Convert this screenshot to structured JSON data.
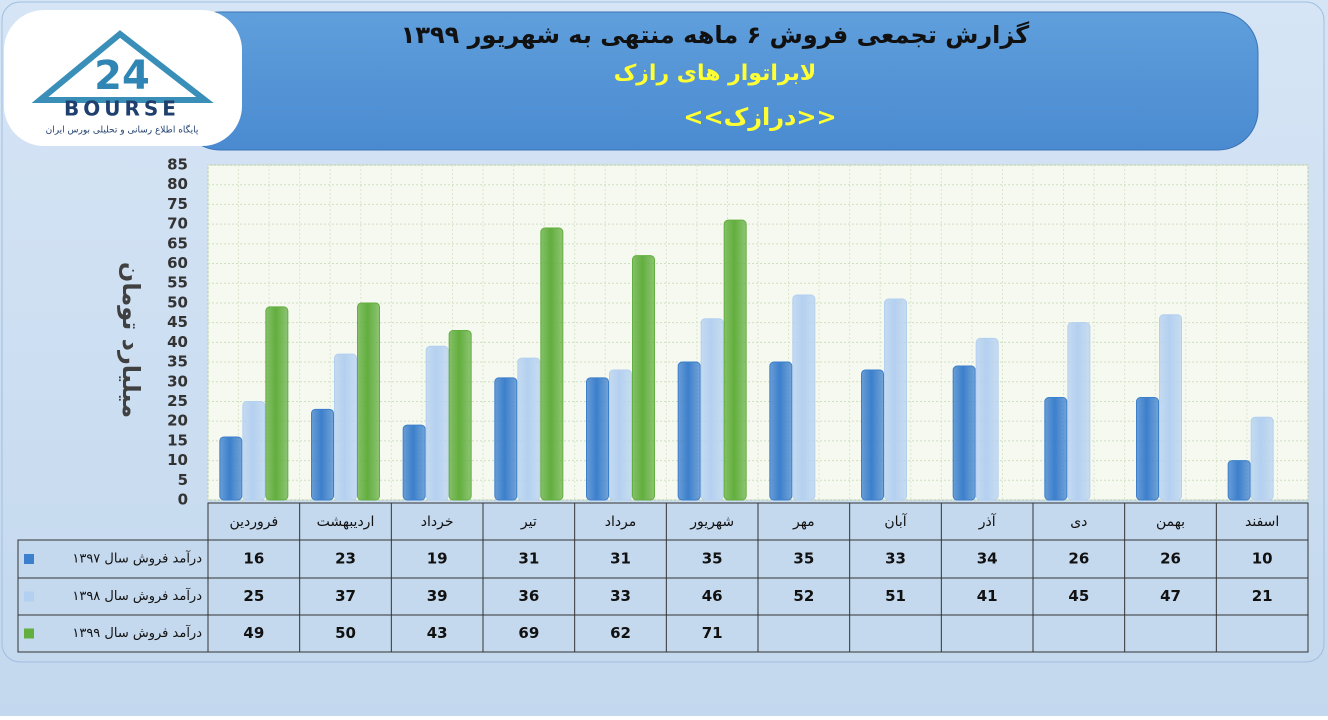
{
  "logo": {
    "mark": "24",
    "name": "BOURSE",
    "tagline": "پایگاه اطلاع رسانی و تحلیلی بورس ایران"
  },
  "chart_data": {
    "type": "bar",
    "title": "گزارش تجمعی فروش ۶ ماهه منتهی به شهریور ۱۳۹۹",
    "subtitle": "لابراتوار های رازک",
    "brand": "<<درازک>>",
    "y_label": "میلیارد تومان",
    "categories": [
      "فروردین",
      "اردیبهشت",
      "خرداد",
      "تیر",
      "مرداد",
      "شهریور",
      "مهر",
      "آبان",
      "آذر",
      "دی",
      "بهمن",
      "اسفند"
    ],
    "series": [
      {
        "name": "درآمد فروش سال ۱۳۹۷",
        "color": "#3c7fcc",
        "values": [
          16,
          23,
          19,
          31,
          31,
          35,
          35,
          33,
          34,
          26,
          26,
          10
        ]
      },
      {
        "name": "درآمد فروش سال ۱۳۹۸",
        "color": "#b4d0f0",
        "values": [
          25,
          37,
          39,
          36,
          33,
          46,
          52,
          51,
          41,
          45,
          47,
          21
        ]
      },
      {
        "name": "درآمد فروش سال ۱۳۹۹",
        "color": "#62ae3e",
        "values": [
          49,
          50,
          43,
          69,
          62,
          71,
          null,
          null,
          null,
          null,
          null,
          null
        ]
      }
    ],
    "ylim": [
      0,
      85
    ],
    "yticks": [
      0,
      5,
      10,
      15,
      20,
      25,
      30,
      35,
      40,
      45,
      50,
      55,
      60,
      65,
      70,
      75,
      80,
      85
    ],
    "grid": true
  }
}
